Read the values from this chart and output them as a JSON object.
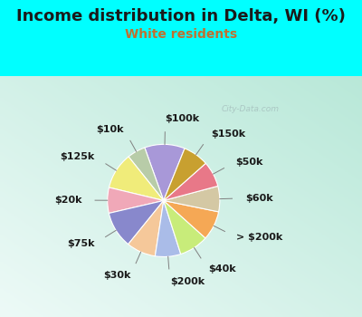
{
  "title": "Income distribution in Delta, WI (%)",
  "subtitle": "White residents",
  "bg_color": "#00FFFF",
  "chart_bg_top": "#edfaf7",
  "chart_bg_bottom": "#c8eedd",
  "labels": [
    "$100k",
    "$10k",
    "$125k",
    "$20k",
    "$75k",
    "$30k",
    "$200k",
    "$40k",
    "> $200k",
    "$60k",
    "$50k",
    "$150k"
  ],
  "sizes": [
    11,
    5,
    10,
    7,
    10,
    8,
    7,
    8,
    8,
    7,
    7,
    7
  ],
  "colors": [
    "#a898d8",
    "#b8cca8",
    "#f0ec7a",
    "#f0a8b8",
    "#8888cc",
    "#f5c89a",
    "#aabce8",
    "#c8ec7a",
    "#f5a855",
    "#d4c8a4",
    "#e87888",
    "#c8a030"
  ],
  "title_color": "#1a1a1a",
  "subtitle_color": "#c07030",
  "label_color": "#1a1a1a",
  "title_fontsize": 13,
  "subtitle_fontsize": 10,
  "label_fontsize": 8,
  "startangle": 68,
  "watermark": "City-Data.com"
}
